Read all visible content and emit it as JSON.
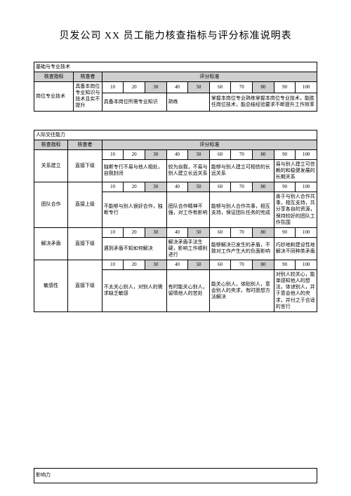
{
  "title": "贝发公司 XX 员工能力核查指标与评分标准说明表",
  "scoreHeaders": [
    "10",
    "20",
    "30",
    "40",
    "50",
    "60",
    "70",
    "80",
    "90",
    "100"
  ],
  "colLabels": {
    "indicator": "核查指标",
    "checker": "核查者",
    "criteria": "评分标准"
  },
  "sectionNames": {
    "basic": "基础与专业技术",
    "inter": "人际交往能力",
    "influence": "影响力"
  },
  "basic": {
    "rows": [
      {
        "indicator": "岗位专业技术",
        "checker": "具备本岗位专业知识与技术且实不提升",
        "c1": "具备本岗位所需专业知识",
        "c2": "熟练",
        "c3": "掌握本岗位专业熟练掌握本岗位专业技术，能胜任岗位技术，能总结经验要求不断提升工作效率"
      }
    ]
  },
  "inter": {
    "rows": [
      {
        "indicator": "关系建立",
        "checker": "直接下级",
        "b1": "独断专行不易与他人相处，自我封闭",
        "b2": "较为自我，不易与别人建立长远关系",
        "b3": "能够与别人建立可相信的长远关系",
        "b4": "易与别人建立可信赖的和稳健发展的长期关系"
      },
      {
        "indicator": "团队合作",
        "checker": "直接上级",
        "b1": "不能够与别人很好合作，独断专行",
        "b2": "团队合作精神不强，对工作有影响",
        "b3": "能够与别人合作共事，相互支持，保证团队任务的完成",
        "b4": "善于与别人合作共事，相互支持，共分享各自的资源，保持较好的团队工作氛围"
      },
      {
        "indicator": "解决矛盾",
        "checker": "直接下级",
        "b1": "遇到矛盾不知如何解决",
        "b2": "解决矛盾手法生硬，影响工作顺利进行",
        "b3": "能够解决已发生的矛盾，不致对工作产生大的负面影响",
        "b4": "巧妙地和建设性地解决不同种类矛盾"
      },
      {
        "indicator": "敏感性",
        "checker": "直接下级",
        "b1": "不太关心别人，对别人的需求缺乏敏感",
        "b2": "有时能关心别人，留情他人的苦处",
        "b3": "能关心别人，体贴别人，意会别人的央求，有时愿想方法解决",
        "b4": "对别人较关心，能单感知他人的想法，体谅别人，并于意会他人的央求，并付之于合适的言行"
      }
    ]
  }
}
